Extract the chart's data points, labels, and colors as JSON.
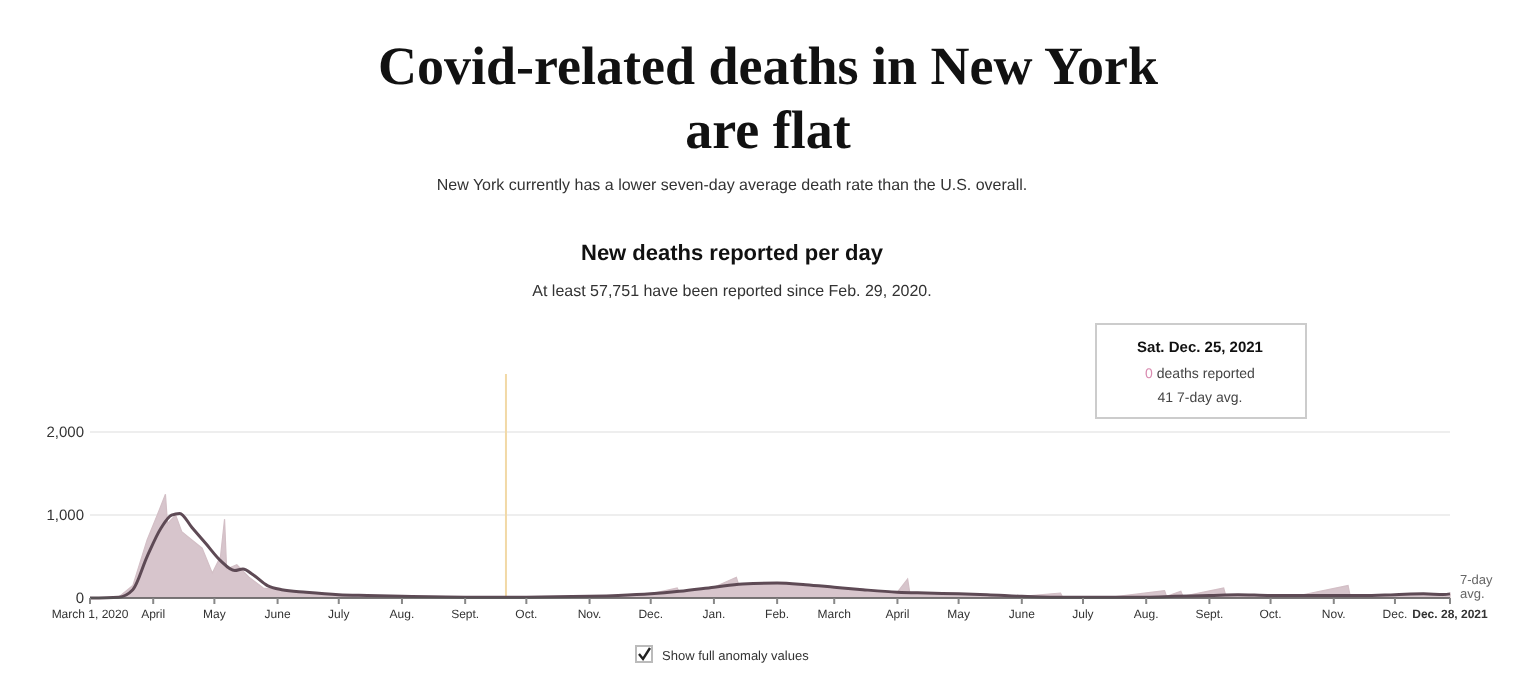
{
  "chart_data": {
    "type": "area",
    "title": "Covid-related deaths in New York are flat",
    "subtitle": "New York currently has a lower seven-day average death rate than the U.S. overall.",
    "annotations": [
      "New deaths reported per day",
      "At least 57,751 have been reported since Feb. 29, 2020.",
      "Sat. Dec. 25, 2021",
      "0 deaths reported",
      "41 7-day avg.",
      "Show full anomaly values"
    ],
    "series": [
      {
        "color": "#d3bfc6",
        "x": [
          "2020-03-01",
          "2020-03-15",
          "2020-03-22",
          "2020-03-29",
          "2020-04-03",
          "2020-04-07",
          "2020-04-08",
          "2020-04-12",
          "2020-04-15",
          "2020-04-20",
          "2020-04-25",
          "2020-04-30",
          "2020-05-04",
          "2020-05-06",
          "2020-05-07",
          "2020-05-12",
          "2020-05-18",
          "2020-05-25",
          "2020-06-05",
          "2020-06-20",
          "2020-07-10",
          "2020-08-01",
          "2020-09-01",
          "2020-10-01",
          "2020-11-01",
          "2020-12-01",
          "2020-12-14",
          "2020-12-15",
          "2021-01-01",
          "2021-01-12",
          "2021-01-13",
          "2021-02-01",
          "2021-03-01",
          "2021-04-01",
          "2021-04-06",
          "2021-04-07",
          "2021-05-01",
          "2021-06-01",
          "2021-06-20",
          "2021-06-21",
          "2021-07-15",
          "2021-08-10",
          "2021-08-11",
          "2021-08-18",
          "2021-08-19",
          "2021-09-08",
          "2021-09-09",
          "2021-10-15",
          "2021-11-08",
          "2021-11-09",
          "2021-12-01",
          "2021-12-15",
          "2021-12-24",
          "2021-12-25",
          "2021-12-26",
          "2021-12-28"
        ],
        "values": [
          0,
          10,
          150,
          700,
          1000,
          1250,
          900,
          1000,
          800,
          700,
          600,
          300,
          500,
          950,
          350,
          400,
          250,
          120,
          90,
          60,
          30,
          20,
          10,
          10,
          20,
          50,
          120,
          70,
          130,
          250,
          170,
          180,
          130,
          70,
          230,
          70,
          50,
          20,
          60,
          10,
          10,
          90,
          20,
          80,
          20,
          120,
          30,
          30,
          150,
          30,
          40,
          50,
          50,
          0,
          40,
          60
        ]
      },
      {
        "type": "line",
        "name": "7-day avg.",
        "color": "#5e4a55",
        "x": [
          "2020-03-01",
          "2020-03-15",
          "2020-03-22",
          "2020-03-29",
          "2020-04-05",
          "2020-04-10",
          "2020-04-14",
          "2020-04-20",
          "2020-04-27",
          "2020-05-04",
          "2020-05-11",
          "2020-05-15",
          "2020-05-20",
          "2020-05-27",
          "2020-06-03",
          "2020-06-15",
          "2020-07-01",
          "2020-07-15",
          "2020-08-01",
          "2020-09-01",
          "2020-10-01",
          "2020-11-01",
          "2020-11-15",
          "2020-12-01",
          "2020-12-15",
          "2021-01-01",
          "2021-01-15",
          "2021-02-01",
          "2021-02-15",
          "2021-03-01",
          "2021-03-15",
          "2021-04-01",
          "2021-04-15",
          "2021-05-01",
          "2021-05-15",
          "2021-06-01",
          "2021-06-15",
          "2021-07-01",
          "2021-07-15",
          "2021-08-01",
          "2021-08-15",
          "2021-09-01",
          "2021-09-15",
          "2021-10-01",
          "2021-10-15",
          "2021-11-01",
          "2021-11-15",
          "2021-12-01",
          "2021-12-15",
          "2021-12-25",
          "2021-12-28"
        ],
        "values": [
          0,
          10,
          100,
          500,
          850,
          1000,
          1020,
          850,
          650,
          450,
          330,
          350,
          280,
          150,
          100,
          70,
          40,
          30,
          20,
          10,
          10,
          20,
          30,
          50,
          80,
          130,
          170,
          180,
          160,
          130,
          100,
          70,
          60,
          50,
          40,
          20,
          10,
          10,
          10,
          10,
          20,
          30,
          40,
          30,
          30,
          30,
          30,
          40,
          50,
          41,
          50
        ]
      }
    ],
    "xlim": [
      "2020-03-01",
      "2021-12-28"
    ],
    "xticks": [
      {
        "value": "2020-03-01",
        "label": "March 1, 2020"
      },
      {
        "value": "2020-04-01",
        "label": "April"
      },
      {
        "value": "2020-05-01",
        "label": "May"
      },
      {
        "value": "2020-06-01",
        "label": "June"
      },
      {
        "value": "2020-07-01",
        "label": "July"
      },
      {
        "value": "2020-08-01",
        "label": "Aug."
      },
      {
        "value": "2020-09-01",
        "label": "Sept."
      },
      {
        "value": "2020-10-01",
        "label": "Oct."
      },
      {
        "value": "2020-11-01",
        "label": "Nov."
      },
      {
        "value": "2020-12-01",
        "label": "Dec."
      },
      {
        "value": "2021-01-01",
        "label": "Jan."
      },
      {
        "value": "2021-02-01",
        "label": "Feb."
      },
      {
        "value": "2021-03-01",
        "label": "March"
      },
      {
        "value": "2021-04-01",
        "label": "April"
      },
      {
        "value": "2021-05-01",
        "label": "May"
      },
      {
        "value": "2021-06-01",
        "label": "June"
      },
      {
        "value": "2021-07-01",
        "label": "July"
      },
      {
        "value": "2021-08-01",
        "label": "Aug."
      },
      {
        "value": "2021-09-01",
        "label": "Sept."
      },
      {
        "value": "2021-10-01",
        "label": "Oct."
      },
      {
        "value": "2021-11-01",
        "label": "Nov."
      },
      {
        "value": "2021-12-01",
        "label": "Dec."
      },
      {
        "value": "2021-12-28",
        "label": "Dec. 28, 2021"
      }
    ],
    "ylim": [
      0,
      2700
    ],
    "yticks": [
      0,
      {
        "value": 1000,
        "label": "1,000"
      },
      {
        "value": 2000,
        "label": "2,000"
      }
    ],
    "ref_lines": [
      {
        "axis": "x",
        "value": "2020-09-21",
        "color": "#f2d9a6"
      }
    ],
    "grid": "y",
    "legend": false,
    "marker": "none"
  }
}
